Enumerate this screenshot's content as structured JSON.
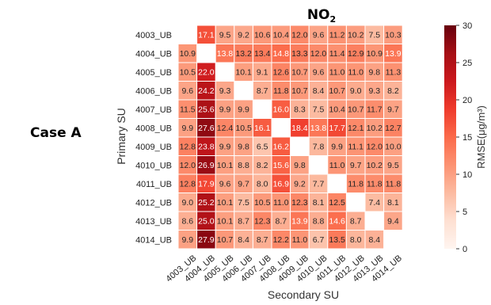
{
  "case_label": "Case A",
  "chart_data": {
    "type": "heatmap",
    "title": "NO",
    "title_subscript": "2",
    "xlabel": "Secondary SU",
    "ylabel": "Primary SU",
    "rows": [
      "4003_UB",
      "4004_UB",
      "4005_UB",
      "4006_UB",
      "4007_UB",
      "4008_UB",
      "4009_UB",
      "4010_UB",
      "4011_UB",
      "4012_UB",
      "4013_UB",
      "4014_UB"
    ],
    "cols": [
      "4003_UB",
      "4004_UB",
      "4005_UB",
      "4006_UB",
      "4007_UB",
      "4008_UB",
      "4009_UB",
      "4010_UB",
      "4011_UB",
      "4012_UB",
      "4013_UB",
      "4014_UB"
    ],
    "values": [
      [
        null,
        17.1,
        9.5,
        9.2,
        10.6,
        10.4,
        12.0,
        9.6,
        11.2,
        10.2,
        7.5,
        10.3
      ],
      [
        10.9,
        null,
        13.8,
        13.2,
        13.4,
        14.8,
        13.3,
        12.0,
        11.4,
        12.9,
        10.9,
        13.9
      ],
      [
        10.5,
        22.0,
        null,
        10.1,
        9.1,
        12.6,
        10.7,
        9.6,
        11.0,
        11.0,
        9.8,
        11.3
      ],
      [
        9.6,
        24.2,
        9.3,
        null,
        8.7,
        11.8,
        10.7,
        8.4,
        10.7,
        9.0,
        9.3,
        8.2
      ],
      [
        11.5,
        25.6,
        9.9,
        9.9,
        null,
        16.0,
        8.3,
        7.5,
        10.4,
        10.7,
        11.7,
        9.7
      ],
      [
        9.9,
        27.6,
        12.4,
        10.5,
        16.1,
        null,
        18.4,
        13.8,
        17.7,
        12.1,
        10.2,
        12.7
      ],
      [
        12.8,
        23.8,
        9.9,
        9.8,
        6.5,
        16.2,
        null,
        7.8,
        9.9,
        11.1,
        12.0,
        10.0
      ],
      [
        12.0,
        26.9,
        10.1,
        8.8,
        8.2,
        15.6,
        9.8,
        null,
        11.0,
        9.7,
        10.2,
        9.5
      ],
      [
        12.8,
        17.9,
        9.6,
        9.7,
        8.0,
        16.9,
        9.2,
        7.7,
        null,
        11.8,
        11.8,
        11.8
      ],
      [
        9.0,
        25.2,
        10.1,
        7.5,
        10.5,
        11.0,
        12.3,
        8.1,
        12.5,
        null,
        7.4,
        8.1
      ],
      [
        8.6,
        25.0,
        10.1,
        8.7,
        12.3,
        8.7,
        13.9,
        8.8,
        14.6,
        8.7,
        null,
        9.4
      ],
      [
        9.9,
        27.9,
        10.7,
        8.4,
        8.7,
        12.2,
        11.0,
        6.7,
        13.5,
        8.0,
        8.4,
        null
      ]
    ],
    "colorbar": {
      "label": "RMSE(μg/m³)",
      "min": 0,
      "max": 30,
      "ticks": [
        "0",
        "5",
        "10",
        "15",
        "20",
        "25",
        "30"
      ],
      "color_low": "#fff5f0",
      "color_high": "#67000d"
    }
  }
}
